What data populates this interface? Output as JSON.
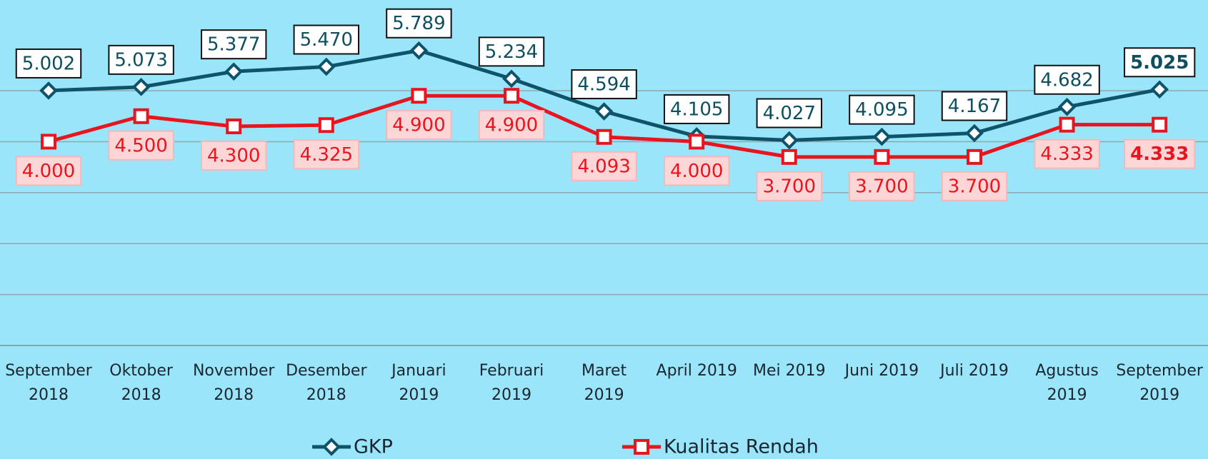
{
  "chart_data": {
    "type": "line",
    "categories": [
      "September 2018",
      "Oktober 2018",
      "November 2018",
      "Desember 2018",
      "Januari 2019",
      "Februari 2019",
      "Maret 2019",
      "April 2019",
      "Mei 2019",
      "Juni 2019",
      "Juli 2019",
      "Agustus 2019",
      "September 2019"
    ],
    "series": [
      {
        "name": "GKP",
        "color": "#0e5369",
        "values": [
          5002,
          5073,
          5377,
          5470,
          5789,
          5234,
          4594,
          4105,
          4027,
          4095,
          4167,
          4682,
          5025
        ],
        "value_labels": [
          "5.002",
          "5.073",
          "5.377",
          "5.470",
          "5.789",
          "5.234",
          "4.594",
          "4.105",
          "4.027",
          "4.095",
          "4.167",
          "4.682",
          "5.025"
        ]
      },
      {
        "name": "Kualitas Rendah",
        "color": "#e8141e",
        "values": [
          4000,
          4500,
          4300,
          4325,
          4900,
          4900,
          4093,
          4000,
          3700,
          3700,
          3700,
          4333,
          4333
        ],
        "value_labels": [
          "4.000",
          "4.500",
          "4.300",
          "4.325",
          "4.900",
          "4.900",
          "4.093",
          "4.000",
          "3.700",
          "3.700",
          "3.700",
          "4.333",
          "4.333"
        ]
      }
    ],
    "ylim": [
      0,
      6780
    ],
    "yticks": [
      0,
      1000,
      2000,
      3000,
      4000,
      5000
    ],
    "grid": true
  }
}
